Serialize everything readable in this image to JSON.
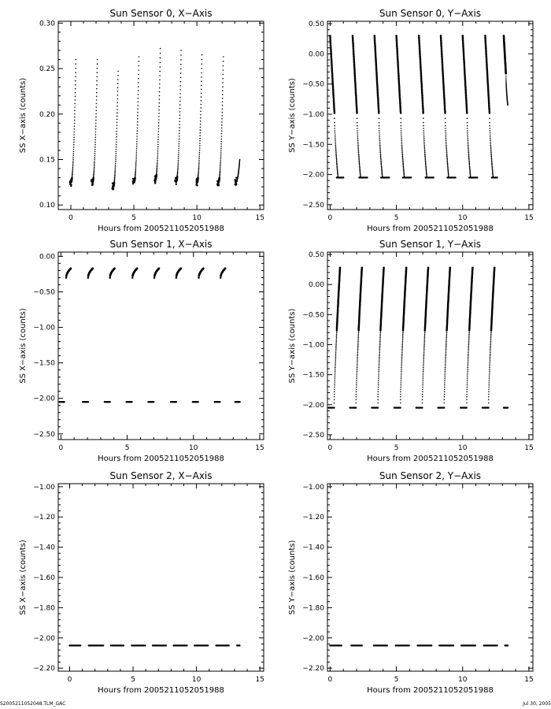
{
  "chart_data": [
    {
      "type": "scatter",
      "title": "Sun Sensor 0, X−Axis",
      "xlabel": "Hours from 2005211052051988",
      "ylabel": "SS X−axis (counts)",
      "xlim": [
        -1,
        15.3
      ],
      "ylim": [
        0.095,
        0.302
      ],
      "xticks": [
        0,
        5,
        10,
        15
      ],
      "yticks": [
        0.1,
        0.15,
        0.2,
        0.25,
        0.3
      ],
      "ytick_labels": [
        "0.10",
        "0.15",
        "0.20",
        "0.25",
        "0.30"
      ],
      "pattern": "ramp",
      "sweeps": [
        {
          "x0": 0.0,
          "x1": 0.4,
          "y0": 0.125,
          "y1": 0.26
        },
        {
          "x0": 1.7,
          "x1": 2.1,
          "y0": 0.125,
          "y1": 0.26
        },
        {
          "x0": 3.35,
          "x1": 3.75,
          "y0": 0.12,
          "y1": 0.247
        },
        {
          "x0": 5.0,
          "x1": 5.4,
          "y0": 0.125,
          "y1": 0.263
        },
        {
          "x0": 6.7,
          "x1": 7.1,
          "y0": 0.128,
          "y1": 0.272
        },
        {
          "x0": 8.35,
          "x1": 8.75,
          "y0": 0.126,
          "y1": 0.27
        },
        {
          "x0": 10.0,
          "x1": 10.4,
          "y0": 0.125,
          "y1": 0.265
        },
        {
          "x0": 11.7,
          "x1": 12.1,
          "y0": 0.125,
          "y1": 0.263
        },
        {
          "x0": 13.1,
          "x1": 13.4,
          "y0": 0.126,
          "y1": 0.15
        }
      ]
    },
    {
      "type": "scatter",
      "title": "Sun Sensor 0, Y−Axis",
      "xlabel": "Hours from 2005211052051988",
      "ylabel": "SS Y−axis (counts)",
      "xlim": [
        -0.2,
        15.3
      ],
      "ylim": [
        -2.58,
        0.54
      ],
      "xticks": [
        0,
        5,
        10,
        15
      ],
      "yticks": [
        0.5,
        0.0,
        -0.5,
        -1.0,
        -1.5,
        -2.0,
        -2.5
      ],
      "ytick_labels": [
        "0.50",
        "0.00",
        "−0.50",
        "−1.00",
        "−1.50",
        "−2.00",
        "−2.50"
      ],
      "pattern": "descend",
      "floor": -2.05,
      "sweeps": [
        {
          "x0": 0.0,
          "x1": 0.6,
          "y0": 0.3,
          "y1": -2.05
        },
        {
          "x0": 1.7,
          "x1": 2.3,
          "y0": 0.3,
          "y1": -2.05
        },
        {
          "x0": 3.35,
          "x1": 3.95,
          "y0": 0.3,
          "y1": -2.05
        },
        {
          "x0": 5.0,
          "x1": 5.6,
          "y0": 0.3,
          "y1": -2.05
        },
        {
          "x0": 6.7,
          "x1": 7.3,
          "y0": 0.3,
          "y1": -2.05
        },
        {
          "x0": 8.35,
          "x1": 8.95,
          "y0": 0.3,
          "y1": -2.05
        },
        {
          "x0": 10.0,
          "x1": 10.6,
          "y0": 0.3,
          "y1": -2.05
        },
        {
          "x0": 11.7,
          "x1": 12.3,
          "y0": 0.3,
          "y1": -2.05
        },
        {
          "x0": 13.1,
          "x1": 13.4,
          "y0": 0.3,
          "y1": -0.85
        }
      ],
      "floor_segments": [
        [
          0.5,
          1.0
        ],
        [
          2.2,
          2.8
        ],
        [
          3.85,
          4.45
        ],
        [
          5.5,
          6.1
        ],
        [
          7.2,
          7.8
        ],
        [
          8.85,
          9.45
        ],
        [
          10.5,
          11.1
        ],
        [
          12.2,
          12.6
        ]
      ]
    },
    {
      "type": "scatter",
      "title": "Sun Sensor 1, X−Axis",
      "xlabel": "Hours from 2005211052051988",
      "ylabel": "SS X−axis (counts)",
      "xlim": [
        -0.2,
        15.3
      ],
      "ylim": [
        -2.58,
        0.06
      ],
      "xticks": [
        0,
        5,
        10,
        15
      ],
      "yticks": [
        0.0,
        -0.5,
        -1.0,
        -1.5,
        -2.0,
        -2.5
      ],
      "ytick_labels": [
        "0.00",
        "−0.50",
        "−1.00",
        "−1.50",
        "−2.00",
        "−2.50"
      ],
      "pattern": "arc",
      "arcs": [
        {
          "x0": 0.4,
          "x1": 0.75
        },
        {
          "x0": 2.05,
          "x1": 2.4
        },
        {
          "x0": 3.7,
          "x1": 4.05
        },
        {
          "x0": 5.4,
          "x1": 5.75
        },
        {
          "x0": 7.05,
          "x1": 7.4
        },
        {
          "x0": 8.7,
          "x1": 9.05
        },
        {
          "x0": 10.4,
          "x1": 10.75
        },
        {
          "x0": 12.05,
          "x1": 12.4
        }
      ],
      "arc_low": -0.3,
      "arc_high": -0.17,
      "floor": -2.05,
      "floor_segments": [
        [
          -0.1,
          0.25
        ],
        [
          1.65,
          2.05
        ],
        [
          3.3,
          3.7
        ],
        [
          4.95,
          5.35
        ],
        [
          6.6,
          7.0
        ],
        [
          8.3,
          8.7
        ],
        [
          9.95,
          10.35
        ],
        [
          11.6,
          12.0
        ],
        [
          13.15,
          13.5
        ]
      ]
    },
    {
      "type": "scatter",
      "title": "Sun Sensor 1, Y−Axis",
      "xlabel": "Hours from 2005211052051988",
      "ylabel": "SS Y−axis (counts)",
      "xlim": [
        -0.2,
        15.3
      ],
      "ylim": [
        -2.58,
        0.54
      ],
      "xticks": [
        0,
        5,
        10,
        15
      ],
      "yticks": [
        0.5,
        0.0,
        -0.5,
        -1.0,
        -1.5,
        -2.0,
        -2.5
      ],
      "ytick_labels": [
        "0.50",
        "0.00",
        "−0.50",
        "−1.00",
        "−1.50",
        "−2.00",
        "−2.50"
      ],
      "pattern": "ascend",
      "floor": -2.05,
      "sweeps": [
        {
          "x0": 0.3,
          "x1": 0.75,
          "y0": -2.05,
          "y1": 0.28
        },
        {
          "x0": 1.95,
          "x1": 2.4,
          "y0": -2.05,
          "y1": 0.28
        },
        {
          "x0": 3.6,
          "x1": 4.05,
          "y0": -2.05,
          "y1": 0.28
        },
        {
          "x0": 5.3,
          "x1": 5.75,
          "y0": -2.05,
          "y1": 0.28
        },
        {
          "x0": 6.95,
          "x1": 7.4,
          "y0": -2.05,
          "y1": 0.28
        },
        {
          "x0": 8.6,
          "x1": 9.05,
          "y0": -2.05,
          "y1": 0.28
        },
        {
          "x0": 10.3,
          "x1": 10.75,
          "y0": -2.05,
          "y1": 0.28
        },
        {
          "x0": 11.95,
          "x1": 12.4,
          "y0": -2.05,
          "y1": 0.28
        }
      ],
      "floor_segments": [
        [
          -0.1,
          0.3
        ],
        [
          1.5,
          1.95
        ],
        [
          3.15,
          3.6
        ],
        [
          4.85,
          5.3
        ],
        [
          6.5,
          6.95
        ],
        [
          8.15,
          8.6
        ],
        [
          9.85,
          10.3
        ],
        [
          11.5,
          11.95
        ],
        [
          13.1,
          13.4
        ]
      ]
    },
    {
      "type": "scatter",
      "title": "Sun Sensor 2, X−Axis",
      "xlabel": "Hours from 2005211052051988",
      "ylabel": "SS X−axis (counts)",
      "xlim": [
        -0.9,
        15.3
      ],
      "ylim": [
        -2.22,
        -0.98
      ],
      "xticks": [
        0,
        5,
        10,
        15
      ],
      "yticks": [
        -1.0,
        -1.2,
        -1.4,
        -1.6,
        -1.8,
        -2.0,
        -2.2
      ],
      "ytick_labels": [
        "−1.00",
        "−1.20",
        "−1.40",
        "−1.60",
        "−1.80",
        "−2.00",
        "−2.20"
      ],
      "pattern": "flat",
      "floor": -2.05,
      "floor_segments": [
        [
          0.0,
          0.85
        ],
        [
          1.5,
          2.65
        ],
        [
          3.25,
          4.25
        ],
        [
          4.9,
          5.95
        ],
        [
          6.55,
          7.6
        ],
        [
          8.2,
          9.25
        ],
        [
          9.85,
          10.9
        ],
        [
          11.55,
          12.55
        ],
        [
          13.2,
          13.4
        ]
      ]
    },
    {
      "type": "scatter",
      "title": "Sun Sensor 2, Y−Axis",
      "xlabel": "Hours from 2005211052051988",
      "ylabel": "SS Y−axis (counts)",
      "xlim": [
        -0.2,
        15.3
      ],
      "ylim": [
        -2.22,
        -0.98
      ],
      "xticks": [
        0,
        5,
        10,
        15
      ],
      "yticks": [
        -1.0,
        -1.2,
        -1.4,
        -1.6,
        -1.8,
        -2.0,
        -2.2
      ],
      "ytick_labels": [
        "−1.00",
        "−1.20",
        "−1.40",
        "−1.60",
        "−1.80",
        "−2.00",
        "−2.20"
      ],
      "pattern": "flat",
      "floor": -2.05,
      "floor_segments": [
        [
          1.6,
          2.4
        ],
        [
          3.3,
          4.3
        ],
        [
          4.95,
          5.95
        ],
        [
          6.6,
          7.65
        ],
        [
          8.25,
          9.3
        ],
        [
          9.9,
          10.95
        ],
        [
          11.6,
          12.6
        ],
        [
          13.2,
          13.4
        ],
        [
          0.0,
          0.85
        ]
      ]
    }
  ],
  "footer": {
    "left": "S2005211052048.TLM_GAC",
    "right": "Jul 30, 2005"
  }
}
